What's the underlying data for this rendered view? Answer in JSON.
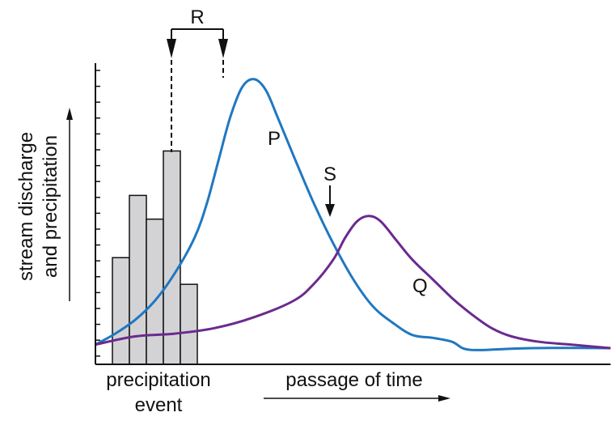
{
  "chart_data": {
    "type": "line",
    "ylabel_line1": "stream discharge",
    "ylabel_line2": "and precipitation",
    "xlabel": "passage of time",
    "event_label_line1": "precipitation",
    "event_label_line2": "event",
    "bars": {
      "values": [
        0.36,
        0.57,
        0.49,
        0.72,
        0.27
      ],
      "fill": "#d3d3d5"
    },
    "series": [
      {
        "name": "P",
        "color": "#1f78c1",
        "points": [
          [
            0,
            0.01
          ],
          [
            0.05,
            0.05
          ],
          [
            0.1,
            0.1
          ],
          [
            0.15,
            0.17
          ],
          [
            0.2,
            0.27
          ],
          [
            0.25,
            0.4
          ],
          [
            0.28,
            0.52
          ],
          [
            0.31,
            0.68
          ],
          [
            0.34,
            0.84
          ],
          [
            0.37,
            0.95
          ],
          [
            0.4,
            0.98
          ],
          [
            0.43,
            0.94
          ],
          [
            0.46,
            0.84
          ],
          [
            0.5,
            0.7
          ],
          [
            0.55,
            0.53
          ],
          [
            0.6,
            0.38
          ],
          [
            0.65,
            0.25
          ],
          [
            0.7,
            0.15
          ],
          [
            0.75,
            0.09
          ],
          [
            0.8,
            0.045
          ],
          [
            0.85,
            0.035
          ],
          [
            0.9,
            0.02
          ],
          [
            0.93,
            -0.005
          ],
          [
            0.97,
            -0.01
          ],
          [
            1.05,
            -0.005
          ],
          [
            1.15,
            -0.002
          ],
          [
            1.3,
            -0.003
          ]
        ]
      },
      {
        "name": "Q",
        "color": "#6a2a8f",
        "points": [
          [
            0,
            0.01
          ],
          [
            0.1,
            0.04
          ],
          [
            0.2,
            0.05
          ],
          [
            0.3,
            0.07
          ],
          [
            0.4,
            0.11
          ],
          [
            0.5,
            0.17
          ],
          [
            0.55,
            0.23
          ],
          [
            0.6,
            0.32
          ],
          [
            0.63,
            0.4
          ],
          [
            0.66,
            0.46
          ],
          [
            0.69,
            0.48
          ],
          [
            0.72,
            0.46
          ],
          [
            0.76,
            0.39
          ],
          [
            0.8,
            0.32
          ],
          [
            0.85,
            0.25
          ],
          [
            0.9,
            0.18
          ],
          [
            0.95,
            0.12
          ],
          [
            1.0,
            0.07
          ],
          [
            1.05,
            0.04
          ],
          [
            1.12,
            0.02
          ],
          [
            1.2,
            0.01
          ],
          [
            1.3,
            -0.003
          ]
        ]
      }
    ],
    "annotations": {
      "lag": "R",
      "peak": "S"
    },
    "ylim": [
      0,
      1
    ],
    "grid": false
  }
}
